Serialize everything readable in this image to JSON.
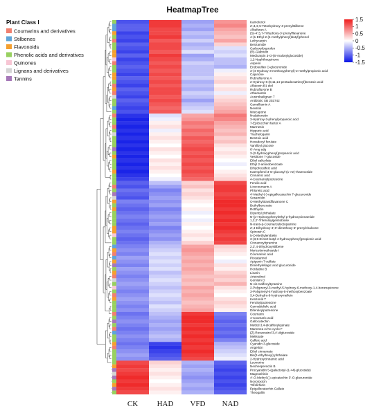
{
  "chart_data": {
    "type": "heatmap",
    "title": "HeatmapTree",
    "columns": [
      "CK",
      "HAD",
      "VFD",
      "NAD"
    ],
    "colorbar": {
      "ticks": [
        1.5,
        1,
        0.5,
        0,
        -0.5,
        -1,
        -1.5
      ],
      "labels": [
        "1.5",
        "1",
        "0.5",
        "0",
        "-0.5",
        "-1",
        "-1.5"
      ],
      "range": [
        -1.5,
        1.5
      ],
      "low_color": "#0a14e6",
      "mid_color": "#ffffff",
      "high_color": "#ee1c1c"
    },
    "legend_title": "Plant Class I",
    "legend": [
      {
        "name": "Coumarins and derivatives",
        "color": "#f08070"
      },
      {
        "name": "Stilbenes",
        "color": "#5fa5d8"
      },
      {
        "name": "Flavonoids",
        "color": "#f5a030"
      },
      {
        "name": "Phenolic acids and derivatives",
        "color": "#98d060"
      },
      {
        "name": "Quinones",
        "color": "#f7c6d4"
      },
      {
        "name": "Lignans and derivatives",
        "color": "#d4d4d4"
      },
      {
        "name": "Tannins",
        "color": "#a678b8"
      }
    ],
    "rows": [
      {
        "label": "Kamolonol",
        "cls": 3,
        "v": [
          -1.1,
          1.3,
          -0.6,
          0.7
        ]
      },
      {
        "label": "2',3,4',5-Tetrahydroxy-4-prenylstilbene",
        "cls": 1,
        "v": [
          -1.0,
          1.3,
          -0.5,
          0.8
        ]
      },
      {
        "label": "Albafuran A",
        "cls": 1,
        "v": [
          -1.0,
          1.2,
          -0.6,
          0.6
        ]
      },
      {
        "label": "(S)-4',5,7-Trihydroxy-3'-prenylflavanone",
        "cls": 2,
        "v": [
          -1.2,
          1.2,
          -0.4,
          0.5
        ]
      },
      {
        "label": "4-(1-Ethyl-2-(4-methylphenyl)butyl)phenol",
        "cls": 3,
        "v": [
          -1.1,
          1.3,
          -0.5,
          0.4
        ]
      },
      {
        "label": "Lethycarpin",
        "cls": 0,
        "v": [
          -1.2,
          1.1,
          -0.3,
          0.6
        ]
      },
      {
        "label": "Benzamide",
        "cls": 3,
        "v": [
          -1.0,
          1.2,
          -0.5,
          0.3
        ]
      },
      {
        "label": "Carboxyibuprofen",
        "cls": 3,
        "v": [
          -1.1,
          1.2,
          -0.4,
          -0.2
        ]
      },
      {
        "label": "(R)-Glabridin",
        "cls": 2,
        "v": [
          -1.2,
          1.1,
          -0.2,
          -0.3
        ]
      },
      {
        "label": "Medicarpin 3-O-(6'-malonylglucoside)",
        "cls": 2,
        "v": [
          -1.0,
          1.3,
          -0.6,
          -0.2
        ]
      },
      {
        "label": "1,2-Naphthoquinone",
        "cls": 4,
        "v": [
          -1.2,
          1.2,
          -0.5,
          -0.4
        ]
      },
      {
        "label": "Asperin",
        "cls": 0,
        "v": [
          -1.1,
          1.1,
          -0.3,
          -0.4
        ]
      },
      {
        "label": "Endosulfan O-glucuronide",
        "cls": 3,
        "v": [
          -1.0,
          1.2,
          -0.4,
          -0.5
        ]
      },
      {
        "label": "3-(4-Hydroxy-3-methoxyphenyl)-2-methylpropionic acid",
        "cls": 3,
        "v": [
          -1.1,
          1.1,
          -0.4,
          -0.1
        ]
      },
      {
        "label": "Cajanone",
        "cls": 2,
        "v": [
          -1.2,
          1.2,
          -0.4,
          0.1
        ]
      },
      {
        "label": "Rubrafluvone A",
        "cls": 2,
        "v": [
          -1.0,
          1.1,
          -0.3,
          0.2
        ]
      },
      {
        "label": "2-Hydroxy-6-(8,11,14-pentadecatrienyl)benzoic acid",
        "cls": 3,
        "v": [
          -1.1,
          1.2,
          -0.5,
          0.3
        ]
      },
      {
        "label": "Aflatoxin B1 diol",
        "cls": 0,
        "v": [
          -1.2,
          1.1,
          -0.4,
          0.1
        ]
      },
      {
        "label": "Rubrafluvone B",
        "cls": 2,
        "v": [
          -1.0,
          1.2,
          -0.5,
          0.2
        ]
      },
      {
        "label": "Athamantin",
        "cls": 0,
        "v": [
          -1.1,
          1.2,
          -0.3,
          -0.1
        ]
      },
      {
        "label": "Austrobailignan 7",
        "cls": 5,
        "v": [
          -1.2,
          1.1,
          -0.4,
          0.2
        ]
      },
      {
        "label": "Antibiotic SB 202742",
        "cls": 3,
        "v": [
          -1.0,
          1.2,
          -0.6,
          0.3
        ]
      },
      {
        "label": "Camelliamin A",
        "cls": 3,
        "v": [
          -1.1,
          1.1,
          -0.4,
          0.4
        ]
      },
      {
        "label": "Nevskin",
        "cls": 1,
        "v": [
          -1.2,
          1.0,
          -0.3,
          0.5
        ]
      },
      {
        "label": "Nitecapone",
        "cls": 3,
        "v": [
          -1.1,
          1.1,
          -0.2,
          0.6
        ]
      },
      {
        "label": "Nodakenetin",
        "cls": 0,
        "v": [
          -1.3,
          -0.2,
          0.6,
          0.9
        ]
      },
      {
        "label": "3-Hydroxy-3-phenylpropanoic acid",
        "cls": 3,
        "v": [
          -1.4,
          -0.1,
          0.7,
          0.8
        ]
      },
      {
        "label": "7-Epizuccheri factor A",
        "cls": 3,
        "v": [
          -1.3,
          0.1,
          0.9,
          0.6
        ]
      },
      {
        "label": "Marmesin",
        "cls": 0,
        "v": [
          -1.4,
          0.2,
          0.8,
          0.5
        ]
      },
      {
        "label": "Hippuric acid",
        "cls": 3,
        "v": [
          -1.3,
          -0.1,
          1.0,
          0.4
        ]
      },
      {
        "label": "Tracheloganin",
        "cls": 5,
        "v": [
          -1.4,
          0.1,
          0.9,
          0.5
        ]
      },
      {
        "label": "Benzoic acid",
        "cls": 3,
        "v": [
          -1.3,
          0.2,
          1.1,
          0.3
        ]
      },
      {
        "label": "Hexadecyl ferulate",
        "cls": 3,
        "v": [
          -1.4,
          0.1,
          1.0,
          0.4
        ]
      },
      {
        "label": "Vanilloyl glucose",
        "cls": 3,
        "v": [
          -1.3,
          0.0,
          1.1,
          0.2
        ]
      },
      {
        "label": "6'-Amg sdg",
        "cls": 6,
        "v": [
          -1.4,
          0.2,
          1.2,
          0.1
        ]
      },
      {
        "label": "3-(2-hydroxyphenyl)propanoic acid",
        "cls": 3,
        "v": [
          -1.3,
          0.1,
          1.1,
          0.2
        ]
      },
      {
        "label": "Vestitone 7-glucoside",
        "cls": 2,
        "v": [
          -1.4,
          0.0,
          1.2,
          0.1
        ]
      },
      {
        "label": "Ethyl salicylate",
        "cls": 3,
        "v": [
          -1.3,
          0.2,
          1.1,
          0.0
        ]
      },
      {
        "label": "Ethyl 2-aminobenzoate",
        "cls": 3,
        "v": [
          -1.4,
          0.1,
          1.2,
          -0.1
        ]
      },
      {
        "label": "Dihydrocaffeic acid",
        "cls": 3,
        "v": [
          -1.3,
          0.2,
          1.1,
          0.0
        ]
      },
      {
        "label": "Kaempferol 3-O-glucosyl-(1->2)-rhamnoside",
        "cls": 2,
        "v": [
          -1.4,
          0.1,
          1.2,
          0.1
        ]
      },
      {
        "label": "Cinnamic acid",
        "cls": 3,
        "v": [
          -1.3,
          0.0,
          1.1,
          0.2
        ]
      },
      {
        "label": "4-Coumaroylputrescine",
        "cls": 3,
        "v": [
          -1.2,
          -0.1,
          1.0,
          0.3
        ]
      },
      {
        "label": "Ferulic acid",
        "cls": 3,
        "v": [
          -1.0,
          -0.4,
          0.3,
          1.2
        ]
      },
      {
        "label": "Licocoumarin A",
        "cls": 0,
        "v": [
          -1.1,
          -0.6,
          0.4,
          1.3
        ]
      },
      {
        "label": "Phloretic acid",
        "cls": 3,
        "v": [
          -0.9,
          -0.8,
          0.2,
          1.3
        ]
      },
      {
        "label": "4'-Methyl-(-)-epigallocatechin 7-glucuronide",
        "cls": 6,
        "v": [
          -1.0,
          -0.7,
          0.3,
          1.2
        ]
      },
      {
        "label": "Sesamolin",
        "cls": 5,
        "v": [
          -1.1,
          -0.6,
          0.2,
          1.3
        ]
      },
      {
        "label": "O-Methylolavidflavanone C",
        "cls": 2,
        "v": [
          -0.8,
          -0.7,
          0.1,
          1.4
        ]
      },
      {
        "label": "Buthylbenzoate",
        "cls": 3,
        "v": [
          -0.9,
          -0.6,
          0.0,
          1.4
        ]
      },
      {
        "label": "Rotthydin",
        "cls": 2,
        "v": [
          -1.0,
          -0.8,
          0.1,
          1.3
        ]
      },
      {
        "label": "Dipentyl phthalate",
        "cls": 3,
        "v": [
          -0.9,
          -0.7,
          -0.1,
          1.4
        ]
      },
      {
        "label": "N-(p-Hydroxyphenylethyl p-hydroxycinnamide",
        "cls": 3,
        "v": [
          -0.8,
          -0.6,
          0.0,
          1.3
        ]
      },
      {
        "label": "1,2,2'-Triferuloylgentiobiose",
        "cls": 3,
        "v": [
          -0.9,
          -0.7,
          -0.1,
          1.4
        ]
      },
      {
        "label": "N-trans-p-Coumaroyloctopamine",
        "cls": 3,
        "v": [
          -1.0,
          -0.6,
          0.1,
          1.3
        ]
      },
      {
        "label": "2',4-Dihydroxy-4',6'-dimethoxy-3'-prenylchalcone",
        "cls": 2,
        "v": [
          -0.9,
          -0.8,
          0.0,
          1.4
        ]
      },
      {
        "label": "Spinosin C",
        "cls": 2,
        "v": [
          -0.8,
          -0.7,
          0.1,
          1.3
        ]
      },
      {
        "label": "5-O-Methylembelin",
        "cls": 4,
        "v": [
          -0.9,
          -0.6,
          0.2,
          1.2
        ]
      },
      {
        "label": "3-(3,5-Di-tert-butyl-4-hydroxyphenyl)propionic acid",
        "cls": 3,
        "v": [
          -1.0,
          -0.7,
          0.1,
          1.3
        ]
      },
      {
        "label": "Cinnamoyltyramine",
        "cls": 3,
        "v": [
          -0.9,
          -0.5,
          0.3,
          1.2
        ]
      },
      {
        "label": "2,3',4-trihydroxystilbene",
        "cls": 1,
        "v": [
          -0.8,
          -0.4,
          0.6,
          0.3
        ]
      },
      {
        "label": "Myricetinmethoside I",
        "cls": 2,
        "v": [
          -0.7,
          -0.3,
          0.7,
          0.2
        ]
      },
      {
        "label": "Coumarinic acid",
        "cls": 0,
        "v": [
          -0.8,
          -0.2,
          0.6,
          0.1
        ]
      },
      {
        "label": "Piceatannol",
        "cls": 1,
        "v": [
          -0.6,
          -0.3,
          0.5,
          0.0
        ]
      },
      {
        "label": "Apigenin 7-sulfate",
        "cls": 2,
        "v": [
          -0.7,
          -0.2,
          0.6,
          -0.1
        ]
      },
      {
        "label": "Dimethylellagic acid glucuronide",
        "cls": 6,
        "v": [
          -0.8,
          -0.3,
          0.5,
          0.2
        ]
      },
      {
        "label": "Hordatine B",
        "cls": 3,
        "v": [
          -0.6,
          -0.2,
          0.6,
          0.1
        ]
      },
      {
        "label": "Linarin",
        "cls": 2,
        "v": [
          -0.7,
          -0.4,
          0.5,
          0.3
        ]
      },
      {
        "label": "Arteindinol",
        "cls": 0,
        "v": [
          -0.8,
          -0.3,
          0.4,
          0.4
        ]
      },
      {
        "label": "Gomisin D",
        "cls": 5,
        "v": [
          -0.7,
          -0.2,
          0.5,
          0.3
        ]
      },
      {
        "label": "N-cis-Caffeoyltyramine",
        "cls": 3,
        "v": [
          -0.6,
          -0.3,
          0.4,
          0.5
        ]
      },
      {
        "label": "2-Polyprenyl-3-methyl-5-hydroxy-6-methoxy-1,4-benzoquinone",
        "cls": 4,
        "v": [
          -0.7,
          -0.4,
          0.6,
          0.2
        ]
      },
      {
        "label": "3-Polyprenyl-4-hydroxy-5-methoxybenzoate",
        "cls": 3,
        "v": [
          -0.8,
          -0.3,
          0.5,
          0.1
        ]
      },
      {
        "label": "3,4-Dehydro-6-hydroxymellein",
        "cls": 0,
        "v": [
          -0.7,
          -0.2,
          0.6,
          0.0
        ]
      },
      {
        "label": "Kenzonol T",
        "cls": 2,
        "v": [
          -0.6,
          -0.3,
          0.5,
          0.2
        ]
      },
      {
        "label": "Feruloylputrescine",
        "cls": 3,
        "v": [
          -0.7,
          -0.4,
          0.4,
          0.3
        ]
      },
      {
        "label": "Cannabidiolic acid",
        "cls": 3,
        "v": [
          -0.8,
          -0.2,
          0.5,
          0.2
        ]
      },
      {
        "label": "Diferuloylputrescine",
        "cls": 3,
        "v": [
          -0.7,
          -0.3,
          0.6,
          0.1
        ]
      },
      {
        "label": "Coumarin",
        "cls": 0,
        "v": [
          -0.9,
          -0.4,
          1.3,
          -0.8
        ]
      },
      {
        "label": "4-Coumaric acid",
        "cls": 3,
        "v": [
          -0.8,
          -0.5,
          1.4,
          -0.9
        ]
      },
      {
        "label": "Gallocatechin",
        "cls": 6,
        "v": [
          -0.7,
          -0.6,
          1.4,
          -1.0
        ]
      },
      {
        "label": "Methyl 3,4-dicaffeoylquinate",
        "cls": 3,
        "v": [
          -0.8,
          -0.5,
          1.3,
          -0.9
        ]
      },
      {
        "label": "Mammea A/AC cyclo F",
        "cls": 0,
        "v": [
          -0.9,
          -0.6,
          1.4,
          -1.0
        ]
      },
      {
        "label": "(Z)-Resveratrol 3,4'-diglucoside",
        "cls": 1,
        "v": [
          -0.8,
          -0.5,
          1.3,
          -0.9
        ]
      },
      {
        "label": "Melissate",
        "cls": 3,
        "v": [
          -0.7,
          -0.4,
          1.4,
          -1.0
        ]
      },
      {
        "label": "Caffeic acid",
        "cls": 3,
        "v": [
          -0.8,
          -0.5,
          1.3,
          -0.8
        ]
      },
      {
        "label": "Cyanidin 3-glucoside",
        "cls": 2,
        "v": [
          -0.9,
          -1.2,
          1.4,
          -0.5
        ]
      },
      {
        "label": "Angelicin",
        "cls": 0,
        "v": [
          -0.8,
          -1.3,
          1.3,
          -0.4
        ]
      },
      {
        "label": "Ethyl cinnamate",
        "cls": 3,
        "v": [
          -0.7,
          -1.2,
          1.4,
          -0.3
        ]
      },
      {
        "label": "Bis(2-ethylhexyl) phthalate",
        "cls": 3,
        "v": [
          -0.6,
          -1.1,
          1.3,
          -0.2
        ]
      },
      {
        "label": "2-Hydroxycinnamic acid",
        "cls": 3,
        "v": [
          -0.7,
          -1.0,
          1.2,
          -0.1
        ]
      },
      {
        "label": "Leonurine",
        "cls": 3,
        "v": [
          1.2,
          0.3,
          -0.5,
          -1.0
        ]
      },
      {
        "label": "Neohesperectin B",
        "cls": 2,
        "v": [
          1.3,
          0.2,
          -0.6,
          -1.1
        ]
      },
      {
        "label": "Procyanidin 5-(galactosyl-(1->4)-glucoside)",
        "cls": 6,
        "v": [
          1.2,
          0.1,
          -0.5,
          -1.2
        ]
      },
      {
        "label": "Magnoshinin",
        "cls": 5,
        "v": [
          1.3,
          0.2,
          -0.6,
          -1.1
        ]
      },
      {
        "label": "4'-O-Methyl-(-)-epicatechin 3'-O-glucuronide",
        "cls": 6,
        "v": [
          1.4,
          0.1,
          -0.7,
          -1.2
        ]
      },
      {
        "label": "Novotoxicin",
        "cls": 3,
        "v": [
          1.3,
          0.0,
          -0.6,
          -1.1
        ]
      },
      {
        "label": "Trifolirhizin",
        "cls": 2,
        "v": [
          1.4,
          0.1,
          -0.5,
          -1.2
        ]
      },
      {
        "label": "Epigallocatechin Gallate",
        "cls": 6,
        "v": [
          1.3,
          0.2,
          -0.6,
          -1.1
        ]
      },
      {
        "label": "Theogallin",
        "cls": 3,
        "v": [
          1.2,
          0.1,
          -0.5,
          -1.0
        ]
      }
    ]
  }
}
